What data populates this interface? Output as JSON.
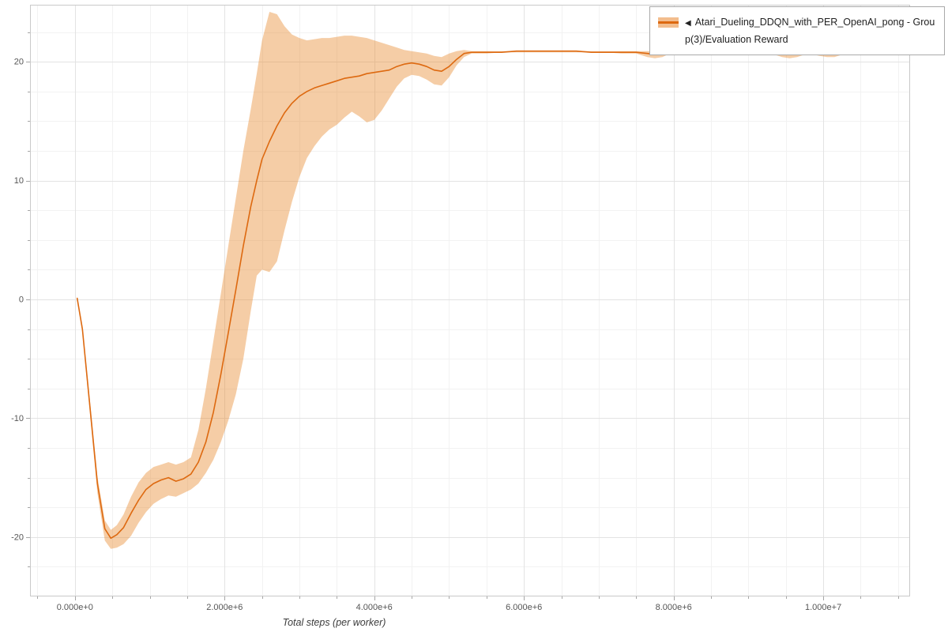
{
  "legend": {
    "marker": "◀",
    "label": "Atari_Dueling_DDQN_with_PER_OpenAI_pong - Group(3)/Evaluation Reward"
  },
  "chart_data": {
    "type": "line",
    "title": "",
    "xlabel": "Total steps (per worker)",
    "ylabel": "",
    "xlim": [
      -600000,
      11160000
    ],
    "ylim": [
      -25,
      24.8
    ],
    "legend_position": "top-right",
    "grid": {
      "x_minor_step": 500000,
      "y_minor_step": 2.5
    },
    "colors": {
      "line": "#dd6910",
      "band": "rgba(232,136,42,0.42)",
      "grid_major": "#e3e3e3",
      "grid_minor": "#f2f2f2",
      "frame": "#c9c9c9",
      "tick": "#a6a6a6",
      "tick_label": "#555555"
    },
    "x_ticks": [
      {
        "v": 0,
        "label": "0.000e+0"
      },
      {
        "v": 2000000,
        "label": "2.000e+6"
      },
      {
        "v": 4000000,
        "label": "4.000e+6"
      },
      {
        "v": 6000000,
        "label": "6.000e+6"
      },
      {
        "v": 8000000,
        "label": "8.000e+6"
      },
      {
        "v": 10000000,
        "label": "1.000e+7"
      }
    ],
    "y_ticks": [
      {
        "v": -20,
        "label": "-20"
      },
      {
        "v": -10,
        "label": "-10"
      },
      {
        "v": 0,
        "label": "0"
      },
      {
        "v": 10,
        "label": "10"
      },
      {
        "v": 20,
        "label": "20"
      }
    ],
    "series": [
      {
        "name": "Atari_Dueling_DDQN_with_PER_OpenAI_pong - Group(3)/Evaluation Reward",
        "point_format": [
          "steps",
          "mean_reward",
          "band_lower",
          "band_upper"
        ],
        "points": [
          [
            30000,
            0.1,
            0.1,
            0.1
          ],
          [
            100000,
            -2.5,
            -2.8,
            -2.2
          ],
          [
            200000,
            -9.0,
            -9.6,
            -8.5
          ],
          [
            300000,
            -15.5,
            -16.3,
            -14.9
          ],
          [
            400000,
            -19.3,
            -20.3,
            -18.6
          ],
          [
            480000,
            -20.1,
            -21.0,
            -19.4
          ],
          [
            560000,
            -19.8,
            -20.9,
            -19.0
          ],
          [
            650000,
            -19.2,
            -20.6,
            -18.1
          ],
          [
            750000,
            -18.0,
            -19.9,
            -16.6
          ],
          [
            850000,
            -16.9,
            -18.8,
            -15.4
          ],
          [
            950000,
            -16.0,
            -17.9,
            -14.6
          ],
          [
            1050000,
            -15.5,
            -17.2,
            -14.1
          ],
          [
            1150000,
            -15.2,
            -16.8,
            -13.9
          ],
          [
            1250000,
            -15.0,
            -16.5,
            -13.7
          ],
          [
            1350000,
            -15.3,
            -16.6,
            -13.9
          ],
          [
            1450000,
            -15.1,
            -16.3,
            -13.7
          ],
          [
            1550000,
            -14.7,
            -16.0,
            -13.3
          ],
          [
            1650000,
            -13.7,
            -15.5,
            -11.0
          ],
          [
            1750000,
            -12.0,
            -14.6,
            -7.5
          ],
          [
            1850000,
            -9.5,
            -13.5,
            -3.5
          ],
          [
            1950000,
            -6.3,
            -12.0,
            0.5
          ],
          [
            2050000,
            -2.8,
            -10.2,
            4.5
          ],
          [
            2150000,
            0.8,
            -8.0,
            8.5
          ],
          [
            2250000,
            4.5,
            -5.0,
            12.5
          ],
          [
            2350000,
            7.8,
            -1.0,
            16.0
          ],
          [
            2430000,
            10.0,
            2.0,
            19.0
          ],
          [
            2500000,
            11.8,
            2.5,
            21.8
          ],
          [
            2600000,
            13.3,
            2.3,
            24.2
          ],
          [
            2700000,
            14.6,
            3.2,
            24.0
          ],
          [
            2800000,
            15.7,
            5.8,
            23.0
          ],
          [
            2900000,
            16.5,
            8.2,
            22.3
          ],
          [
            3000000,
            17.1,
            10.3,
            22.0
          ],
          [
            3100000,
            17.5,
            11.9,
            21.8
          ],
          [
            3200000,
            17.8,
            12.9,
            21.9
          ],
          [
            3300000,
            18.0,
            13.7,
            22.0
          ],
          [
            3400000,
            18.2,
            14.3,
            22.0
          ],
          [
            3500000,
            18.4,
            14.7,
            22.1
          ],
          [
            3600000,
            18.6,
            15.3,
            22.2
          ],
          [
            3700000,
            18.7,
            15.8,
            22.2
          ],
          [
            3800000,
            18.8,
            15.4,
            22.1
          ],
          [
            3900000,
            19.0,
            14.9,
            22.0
          ],
          [
            4000000,
            19.1,
            15.1,
            21.8
          ],
          [
            4100000,
            19.2,
            15.9,
            21.6
          ],
          [
            4200000,
            19.3,
            16.9,
            21.4
          ],
          [
            4300000,
            19.6,
            17.9,
            21.2
          ],
          [
            4400000,
            19.8,
            18.6,
            21.0
          ],
          [
            4500000,
            19.9,
            18.9,
            20.9
          ],
          [
            4600000,
            19.8,
            18.8,
            20.8
          ],
          [
            4700000,
            19.6,
            18.5,
            20.7
          ],
          [
            4800000,
            19.3,
            18.1,
            20.5
          ],
          [
            4900000,
            19.2,
            18.0,
            20.4
          ],
          [
            5000000,
            19.6,
            18.7,
            20.7
          ],
          [
            5100000,
            20.2,
            19.7,
            20.9
          ],
          [
            5200000,
            20.7,
            20.4,
            21.0
          ],
          [
            5300000,
            20.8,
            20.7,
            20.9
          ],
          [
            5500000,
            20.8,
            20.7,
            20.9
          ],
          [
            5700000,
            20.8,
            20.8,
            20.9
          ],
          [
            5900000,
            20.9,
            20.8,
            20.9
          ],
          [
            6100000,
            20.9,
            20.8,
            20.9
          ],
          [
            6300000,
            20.9,
            20.8,
            20.9
          ],
          [
            6500000,
            20.9,
            20.8,
            20.9
          ],
          [
            6700000,
            20.9,
            20.8,
            20.9
          ],
          [
            6900000,
            20.8,
            20.8,
            20.9
          ],
          [
            7100000,
            20.8,
            20.8,
            20.9
          ],
          [
            7300000,
            20.8,
            20.7,
            20.9
          ],
          [
            7500000,
            20.8,
            20.7,
            20.9
          ],
          [
            7650000,
            20.7,
            20.4,
            20.9
          ],
          [
            7750000,
            20.6,
            20.3,
            20.9
          ],
          [
            7850000,
            20.7,
            20.4,
            20.9
          ],
          [
            7950000,
            20.8,
            20.7,
            20.9
          ],
          [
            8100000,
            20.8,
            20.8,
            20.9
          ],
          [
            8300000,
            20.9,
            20.8,
            20.9
          ],
          [
            8500000,
            20.9,
            20.8,
            20.9
          ],
          [
            8700000,
            20.9,
            20.8,
            20.9
          ],
          [
            8900000,
            20.9,
            20.8,
            20.9
          ],
          [
            9100000,
            20.8,
            20.8,
            20.9
          ],
          [
            9300000,
            20.8,
            20.7,
            20.9
          ],
          [
            9450000,
            20.7,
            20.4,
            20.9
          ],
          [
            9550000,
            20.6,
            20.3,
            20.8
          ],
          [
            9650000,
            20.7,
            20.4,
            20.9
          ],
          [
            9800000,
            20.8,
            20.7,
            20.9
          ],
          [
            9950000,
            20.7,
            20.5,
            20.9
          ],
          [
            10050000,
            20.6,
            20.4,
            20.8
          ],
          [
            10150000,
            20.7,
            20.4,
            20.8
          ],
          [
            10250000,
            20.7,
            20.6,
            20.9
          ],
          [
            10400000,
            20.8,
            20.7,
            20.9
          ],
          [
            10600000,
            20.8,
            20.8,
            20.9
          ],
          [
            10800000,
            20.9,
            20.8,
            20.9
          ],
          [
            10900000,
            20.9,
            20.8,
            20.9
          ]
        ]
      }
    ]
  }
}
